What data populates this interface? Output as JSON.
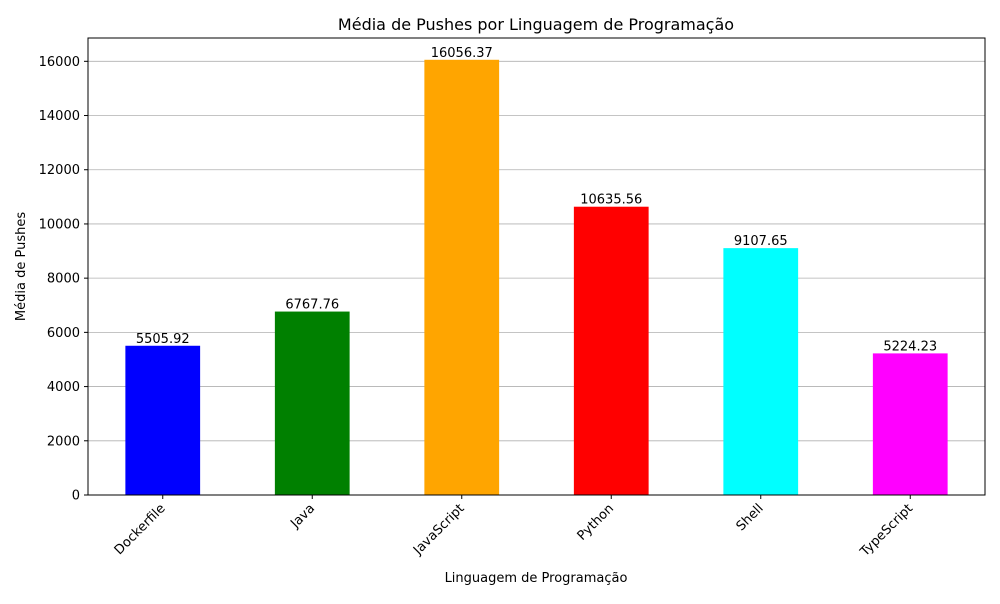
{
  "chart_data": {
    "type": "bar",
    "title": "Média de Pushes por Linguagem de Programação",
    "xlabel": "Linguagem de Programação",
    "ylabel": "Média de Pushes",
    "categories": [
      "Dockerfile",
      "Java",
      "JavaScript",
      "Python",
      "Shell",
      "TypeScript"
    ],
    "values": [
      5505.92,
      6767.76,
      16056.37,
      10635.56,
      9107.65,
      5224.23
    ],
    "data_labels": [
      "5505.92",
      "6767.76",
      "16056.37",
      "10635.56",
      "9107.65",
      "5224.23"
    ],
    "colors": [
      "#0000ff",
      "#008000",
      "#ffa500",
      "#ff0000",
      "#00ffff",
      "#ff00ff"
    ],
    "ylim": [
      0,
      16860
    ],
    "yticks": [
      0,
      2000,
      4000,
      6000,
      8000,
      10000,
      12000,
      14000,
      16000
    ],
    "grid": "y",
    "legend": "none"
  }
}
